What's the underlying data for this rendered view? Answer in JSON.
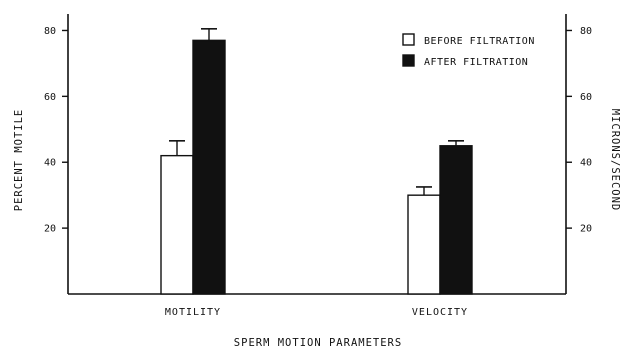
{
  "chart_data": {
    "type": "bar",
    "categories": [
      "MOTILITY",
      "VELOCITY"
    ],
    "series": [
      {
        "name": "BEFORE FILTRATION",
        "values": [
          42,
          30
        ],
        "errors": [
          4.5,
          2.5
        ],
        "color": "#ffffff"
      },
      {
        "name": "AFTER FILTRATION",
        "values": [
          77,
          45
        ],
        "errors": [
          3.5,
          1.5
        ],
        "color": "#111111"
      }
    ],
    "xlabel": "SPERM MOTION PARAMETERS",
    "ylabel": "PERCENT MOTILE",
    "ylabel_right": "MICRONS/SECOND",
    "ylim": [
      0,
      85
    ],
    "yticks": [
      20,
      40,
      60,
      80
    ],
    "ytick_labels": [
      "20",
      "40",
      "60",
      "80"
    ],
    "grid": false,
    "legend_position": "top-right"
  }
}
